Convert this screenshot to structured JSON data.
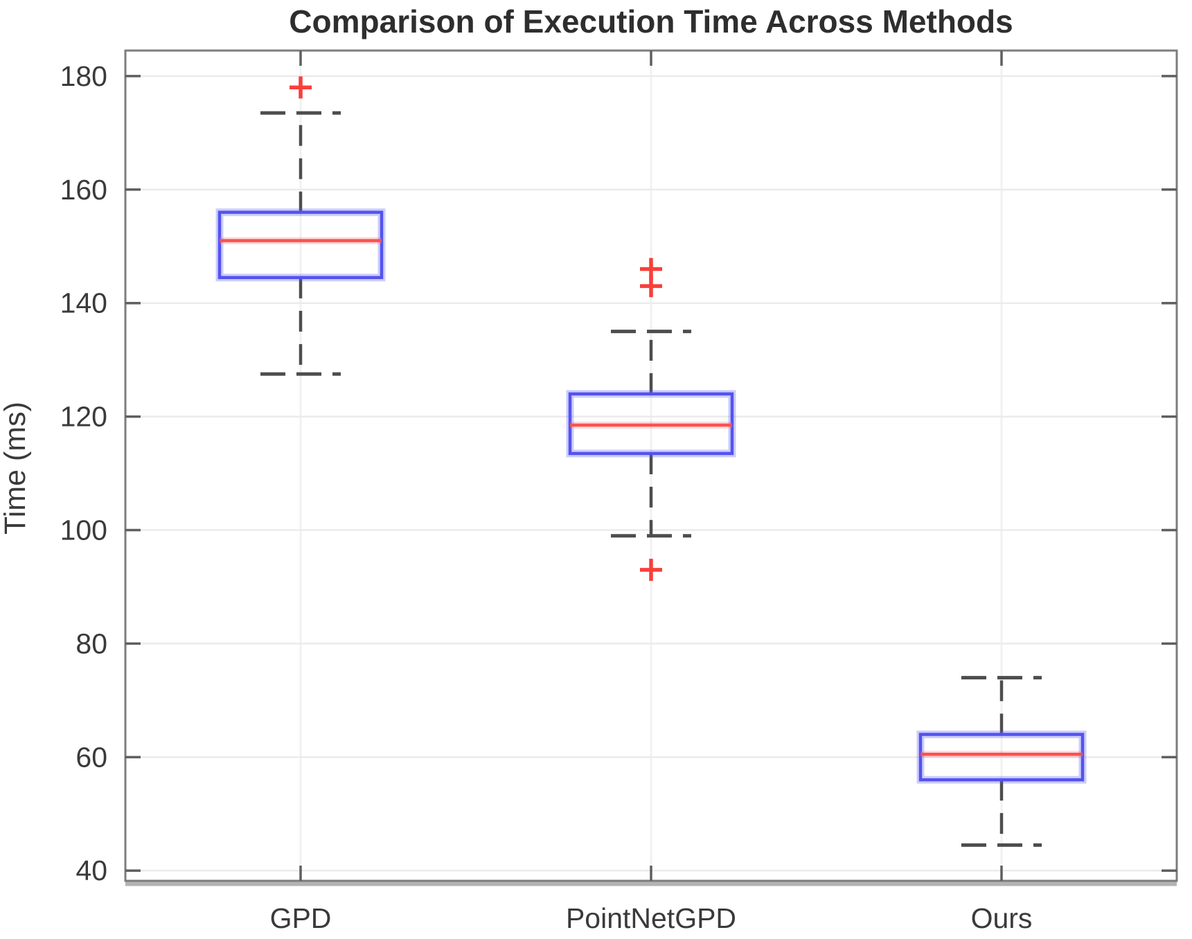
{
  "chart_data": {
    "type": "boxplot",
    "title": "Comparison of Execution Time Across Methods",
    "xlabel": "",
    "ylabel": "Time (ms)",
    "categories": [
      "GPD",
      "PointNetGPD",
      "Ours"
    ],
    "ylim": [
      38.2,
      184.5
    ],
    "yticks": [
      40,
      60,
      80,
      100,
      120,
      140,
      160,
      180
    ],
    "grid": "on",
    "legend": "none",
    "series": [
      {
        "name": "GPD",
        "whisker_low": 127.5,
        "q1": 144.5,
        "median": 151,
        "q3": 156,
        "whisker_high": 173.5,
        "outliers": [
          178
        ]
      },
      {
        "name": "PointNetGPD",
        "whisker_low": 99,
        "q1": 113.5,
        "median": 118.5,
        "q3": 124,
        "whisker_high": 135,
        "outliers": [
          146,
          143,
          93
        ]
      },
      {
        "name": "Ours",
        "whisker_low": 44.5,
        "q1": 56,
        "median": 60.5,
        "q3": 64,
        "whisker_high": 74,
        "outliers": []
      }
    ],
    "colors": {
      "box": "#5353f1",
      "box_halo": "rgba(90,90,243,0.30)",
      "median": "#f85252",
      "median_halo": "rgba(250,100,100,0.25)",
      "whisker": "#4d4d4d",
      "outlier": "#f93f3a",
      "grid_h": "#ebebeb",
      "grid_v": "#f1f1f1",
      "axis": "#7d7d7d",
      "axis_bottom": "#b3b3b3",
      "tick": "#5f5f5f",
      "text": "#3a3a3a"
    }
  }
}
